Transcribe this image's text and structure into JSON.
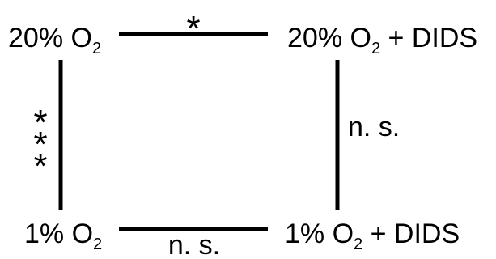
{
  "nodes": {
    "top_left": {
      "prefix": "20% O",
      "subscript": "2",
      "suffix": ""
    },
    "top_right": {
      "prefix": "20% O",
      "subscript": "2",
      "suffix": " + DIDS"
    },
    "bottom_left": {
      "prefix": "1% O",
      "subscript": "2",
      "suffix": ""
    },
    "bottom_right": {
      "prefix": "1% O",
      "subscript": "2",
      "suffix": " + DIDS"
    }
  },
  "comparisons": {
    "top": "*",
    "left": [
      "*",
      "*",
      "*"
    ],
    "right": "n. s.",
    "bottom": "n. s."
  },
  "colors": {
    "line": "#000000",
    "text": "#000000",
    "background": "#ffffff"
  }
}
